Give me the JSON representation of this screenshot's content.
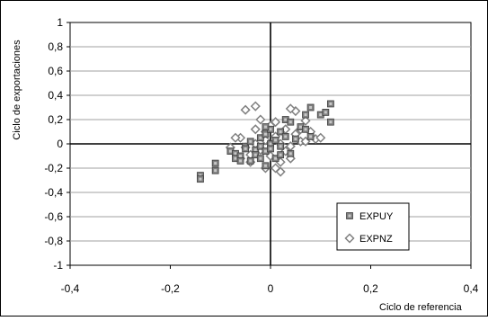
{
  "chart_data": {
    "type": "scatter",
    "title": "",
    "xlabel": "Ciclo de referencia",
    "ylabel": "Ciclo de exportaciones",
    "xlim": [
      -0.4,
      0.4
    ],
    "ylim": [
      -1,
      1
    ],
    "x_tick_labels": [
      "-0,4",
      "-0,2",
      "0",
      "0,2",
      "0,4"
    ],
    "y_tick_labels": [
      "1",
      "0,8",
      "0,6",
      "0,4",
      "0,2",
      "0",
      "-0,2",
      "-0,4",
      "-0,6",
      "-0,8",
      "-1"
    ],
    "grid": {
      "horizontal": true,
      "vertical": false
    },
    "reference_lines": {
      "x": 0,
      "y": 0
    },
    "legend": {
      "placement": "bottom-right"
    },
    "series": [
      {
        "name": "EXPUY",
        "marker": "square",
        "color": "#808080",
        "points": [
          [
            -0.14,
            -0.26
          ],
          [
            -0.14,
            -0.29
          ],
          [
            -0.11,
            -0.16
          ],
          [
            -0.11,
            -0.22
          ],
          [
            -0.08,
            -0.06
          ],
          [
            -0.07,
            -0.08
          ],
          [
            -0.07,
            -0.12
          ],
          [
            -0.06,
            -0.1
          ],
          [
            -0.05,
            -0.02
          ],
          [
            -0.04,
            0.02
          ],
          [
            -0.04,
            -0.14
          ],
          [
            -0.03,
            -0.05
          ],
          [
            -0.03,
            -0.09
          ],
          [
            -0.02,
            0.05
          ],
          [
            -0.02,
            -0.02
          ],
          [
            -0.02,
            -0.12
          ],
          [
            -0.01,
            0.08
          ],
          [
            -0.01,
            -0.06
          ],
          [
            -0.01,
            -0.18
          ],
          [
            0.0,
            0.0
          ],
          [
            0.0,
            -0.04
          ],
          [
            0.0,
            0.12
          ],
          [
            0.01,
            0.03
          ],
          [
            0.01,
            -0.12
          ],
          [
            0.02,
            0.1
          ],
          [
            0.02,
            -0.02
          ],
          [
            0.03,
            0.2
          ],
          [
            0.03,
            0.06
          ],
          [
            0.04,
            -0.08
          ],
          [
            0.04,
            0.18
          ],
          [
            0.05,
            0.04
          ],
          [
            0.06,
            0.14
          ],
          [
            0.07,
            0.24
          ],
          [
            0.07,
            0.12
          ],
          [
            0.08,
            0.3
          ],
          [
            0.08,
            0.06
          ],
          [
            0.1,
            0.24
          ],
          [
            0.11,
            0.26
          ],
          [
            0.12,
            0.33
          ],
          [
            0.12,
            0.18
          ],
          [
            -0.06,
            -0.14
          ],
          [
            -0.05,
            -0.04
          ],
          [
            0.02,
            -0.09
          ],
          [
            -0.01,
            0.14
          ]
        ]
      },
      {
        "name": "EXPNZ",
        "marker": "diamond",
        "color": "#808080",
        "points": [
          [
            -0.06,
            -0.12
          ],
          [
            -0.06,
            0.05
          ],
          [
            -0.05,
            -0.03
          ],
          [
            -0.04,
            -0.15
          ],
          [
            -0.04,
            -0.09
          ],
          [
            -0.03,
            0.0
          ],
          [
            -0.03,
            0.31
          ],
          [
            -0.02,
            0.2
          ],
          [
            -0.02,
            -0.05
          ],
          [
            -0.01,
            0.03
          ],
          [
            -0.01,
            0.1
          ],
          [
            -0.01,
            -0.2
          ],
          [
            0.0,
            0.15
          ],
          [
            0.0,
            -0.1
          ],
          [
            0.01,
            -0.2
          ],
          [
            0.01,
            0.06
          ],
          [
            0.02,
            0.0
          ],
          [
            0.02,
            -0.23
          ],
          [
            0.03,
            -0.06
          ],
          [
            0.03,
            0.12
          ],
          [
            0.04,
            -0.12
          ],
          [
            0.05,
            0.08
          ],
          [
            0.05,
            0.27
          ],
          [
            0.06,
            0.12
          ],
          [
            0.06,
            0.02
          ],
          [
            0.07,
            0.19
          ],
          [
            0.08,
            0.1
          ],
          [
            0.09,
            0.04
          ],
          [
            0.1,
            0.05
          ],
          [
            -0.05,
            0.28
          ],
          [
            -0.07,
            0.05
          ],
          [
            -0.08,
            -0.03
          ],
          [
            0.04,
            0.29
          ],
          [
            0.02,
            -0.15
          ],
          [
            -0.03,
            0.12
          ],
          [
            0.01,
            0.18
          ],
          [
            0.07,
            0.02
          ],
          [
            0.04,
            -0.02
          ]
        ]
      }
    ]
  }
}
